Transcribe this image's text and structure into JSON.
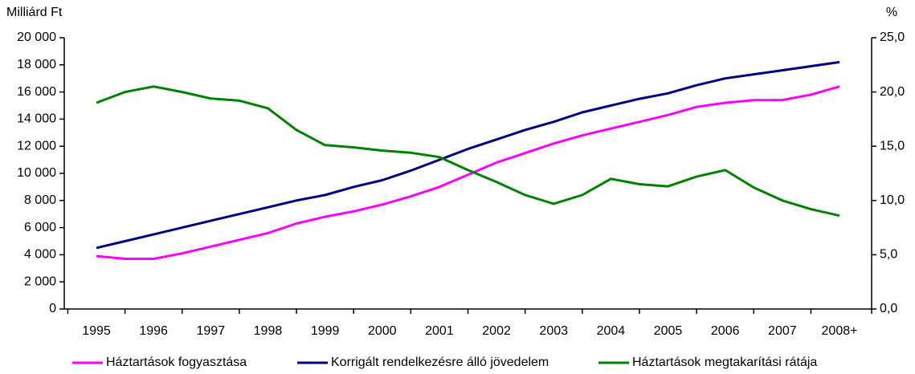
{
  "chart_data": {
    "type": "line",
    "y_axis_label": "Milliárd Ft",
    "y2_axis_label": "%",
    "categories": [
      "1995",
      null,
      "1996",
      null,
      "1997",
      null,
      "1998",
      null,
      "1999",
      null,
      "2000",
      null,
      "2001",
      null,
      "2002",
      null,
      "2003",
      null,
      "2004",
      null,
      "2005",
      null,
      "2006",
      null,
      "2007",
      null,
      "2008+"
    ],
    "ylim": [
      0,
      20000
    ],
    "yticks": [
      0,
      {
        "value": 2000,
        "label": "2 000"
      },
      {
        "value": 4000,
        "label": "4 000"
      },
      {
        "value": 6000,
        "label": "6 000"
      },
      {
        "value": 8000,
        "label": "8 000"
      },
      {
        "value": 10000,
        "label": "10 000"
      },
      {
        "value": 12000,
        "label": "12 000"
      },
      {
        "value": 14000,
        "label": "14 000"
      },
      {
        "value": 16000,
        "label": "16 000"
      },
      {
        "value": 18000,
        "label": "18 000"
      },
      {
        "value": 20000,
        "label": "20 000"
      }
    ],
    "y2lim": [
      0,
      25
    ],
    "y2ticks": [
      {
        "value": 0,
        "label": "0,0"
      },
      {
        "value": 5,
        "label": "5,0"
      },
      {
        "value": 10,
        "label": "10,0"
      },
      {
        "value": 15,
        "label": "15,0"
      },
      {
        "value": 20,
        "label": "20,0"
      },
      {
        "value": 25,
        "label": "25,0"
      }
    ],
    "series": [
      {
        "name": "Háztartások fogyasztása",
        "color": "#ff00ff",
        "values": [
          3900,
          3700,
          3700,
          4100,
          4600,
          5100,
          5600,
          6300,
          6800,
          7200,
          7700,
          8300,
          9000,
          9900,
          10800,
          11500,
          12200,
          12800,
          13300,
          13800,
          14300,
          14900,
          15200,
          15400,
          15400,
          15800,
          16400
        ]
      },
      {
        "name": "Korrigált rendelkezésre álló jövedelem",
        "color": "#000080",
        "values": [
          4500,
          5000,
          5500,
          6000,
          6500,
          7000,
          7500,
          8000,
          8400,
          9000,
          9500,
          10200,
          11000,
          11800,
          12500,
          13200,
          13800,
          14500,
          15000,
          15500,
          15900,
          16500,
          17000,
          17300,
          17600,
          17900,
          18200
        ]
      },
      {
        "name": "Háztartások megtakarítási rátája",
        "color": "#008000",
        "axis": "y2",
        "values": [
          19.0,
          20.0,
          20.5,
          20.0,
          19.4,
          19.2,
          18.5,
          16.5,
          15.1,
          14.9,
          14.6,
          14.4,
          14.0,
          12.8,
          11.7,
          10.5,
          9.7,
          10.5,
          12.0,
          11.5,
          11.3,
          12.2,
          12.8,
          11.2,
          10.0,
          9.2,
          8.6
        ]
      }
    ]
  }
}
